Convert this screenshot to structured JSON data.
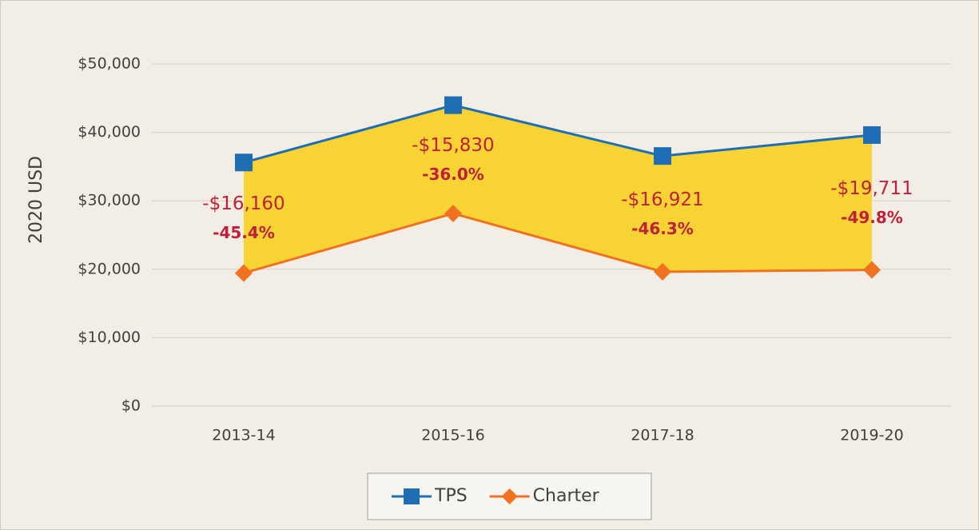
{
  "chart_data": {
    "type": "line",
    "ylabel": "2020 USD",
    "categories": [
      "2013-14",
      "2015-16",
      "2017-18",
      "2019-20"
    ],
    "series": [
      {
        "name": "TPS",
        "color": "#1f6db3",
        "marker": "square",
        "values": [
          35600,
          43980,
          36550,
          39611
        ]
      },
      {
        "name": "Charter",
        "color": "#f07221",
        "marker": "diamond",
        "values": [
          19440,
          28150,
          19630,
          19900
        ]
      }
    ],
    "fill_between": "#f7d333",
    "annotations": [
      {
        "amount": "-$16,160",
        "percent": "-45.4%"
      },
      {
        "amount": "-$15,830",
        "percent": "-36.0%"
      },
      {
        "amount": "-$16,921",
        "percent": "-46.3%"
      },
      {
        "amount": "-$19,711",
        "percent": "-49.8%"
      }
    ],
    "annotation_color": "#c0203a",
    "ylim": [
      0,
      50000
    ],
    "yticks": [
      {
        "value": 0,
        "label": "$0"
      },
      {
        "value": 10000,
        "label": "$10,000"
      },
      {
        "value": 20000,
        "label": "$20,000"
      },
      {
        "value": 30000,
        "label": "$30,000"
      },
      {
        "value": 40000,
        "label": "$40,000"
      },
      {
        "value": 50000,
        "label": "$50,000"
      }
    ],
    "grid": true,
    "legend": "bottom"
  }
}
